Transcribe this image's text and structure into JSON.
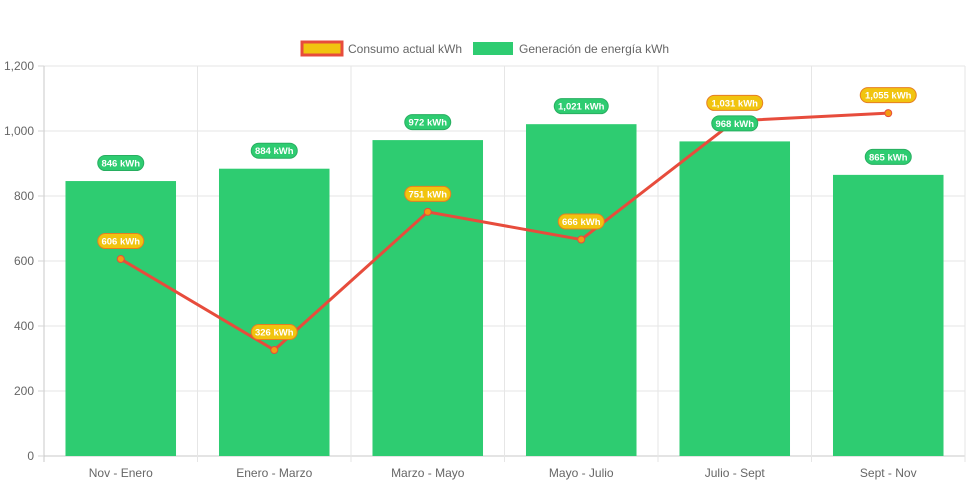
{
  "chart_data": {
    "type": "bar",
    "categories": [
      "Nov - Enero",
      "Enero - Marzo",
      "Marzo - Mayo",
      "Mayo - Julio",
      "Julio - Sept",
      "Sept - Nov"
    ],
    "series": [
      {
        "name": "Consumo actual kWh",
        "type": "line",
        "color": "#e74c3c",
        "label_color": "#f1c40f",
        "values": [
          606,
          326,
          751,
          666,
          1031,
          1055
        ],
        "labels": [
          "606 kWh",
          "326 kWh",
          "751 kWh",
          "666 kWh",
          "1,031 kWh",
          "1,055 kWh"
        ]
      },
      {
        "name": "Generación de energía kWh",
        "type": "bar",
        "color": "#2ecc71",
        "values": [
          846,
          884,
          972,
          1021,
          968,
          865
        ],
        "labels": [
          "846 kWh",
          "884 kWh",
          "972 kWh",
          "1,021 kWh",
          "968 kWh",
          "865 kWh"
        ]
      }
    ],
    "yticks": [
      0,
      200,
      400,
      600,
      800,
      1000,
      1200
    ],
    "ytick_labels": [
      "0",
      "200",
      "400",
      "600",
      "800",
      "1,000",
      "1,200"
    ],
    "ylim": [
      0,
      1200
    ],
    "legend_position": "top-center",
    "grid": true
  }
}
